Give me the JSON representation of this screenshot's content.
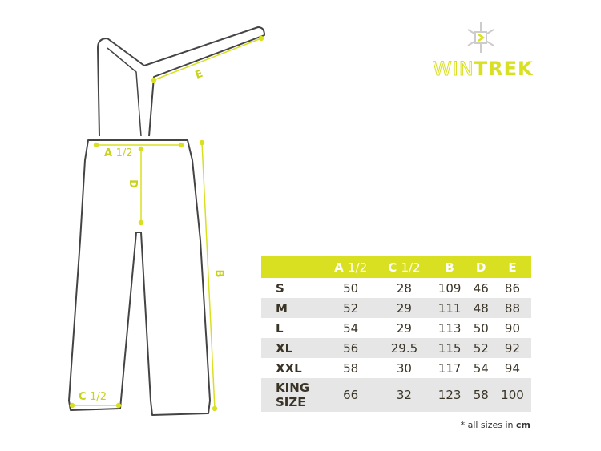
{
  "brand": {
    "name_part1": "WIN",
    "name_part2": "TREK",
    "icon": "snowflake-icon",
    "accent": "#d9e021"
  },
  "diagram_labels": {
    "a": "A",
    "a_frac": "1/2",
    "c": "C",
    "c_frac": "1/2",
    "b": "B",
    "d": "D",
    "e": "E"
  },
  "table": {
    "headers": [
      {
        "main": "A",
        "frac": "1/2"
      },
      {
        "main": "C",
        "frac": "1/2"
      },
      {
        "main": "B",
        "frac": ""
      },
      {
        "main": "D",
        "frac": ""
      },
      {
        "main": "E",
        "frac": ""
      }
    ],
    "rows": [
      {
        "size": "S",
        "values": [
          "50",
          "28",
          "109",
          "46",
          "86"
        ]
      },
      {
        "size": "M",
        "values": [
          "52",
          "29",
          "111",
          "48",
          "88"
        ]
      },
      {
        "size": "L",
        "values": [
          "54",
          "29",
          "113",
          "50",
          "90"
        ]
      },
      {
        "size": "XL",
        "values": [
          "56",
          "29.5",
          "115",
          "52",
          "92"
        ]
      },
      {
        "size": "XXL",
        "values": [
          "58",
          "30",
          "117",
          "54",
          "94"
        ]
      },
      {
        "size": "KING SIZE",
        "values": [
          "66",
          "32",
          "123",
          "58",
          "100"
        ]
      }
    ]
  },
  "note": {
    "text": "* all sizes in ",
    "unit": "cm"
  }
}
